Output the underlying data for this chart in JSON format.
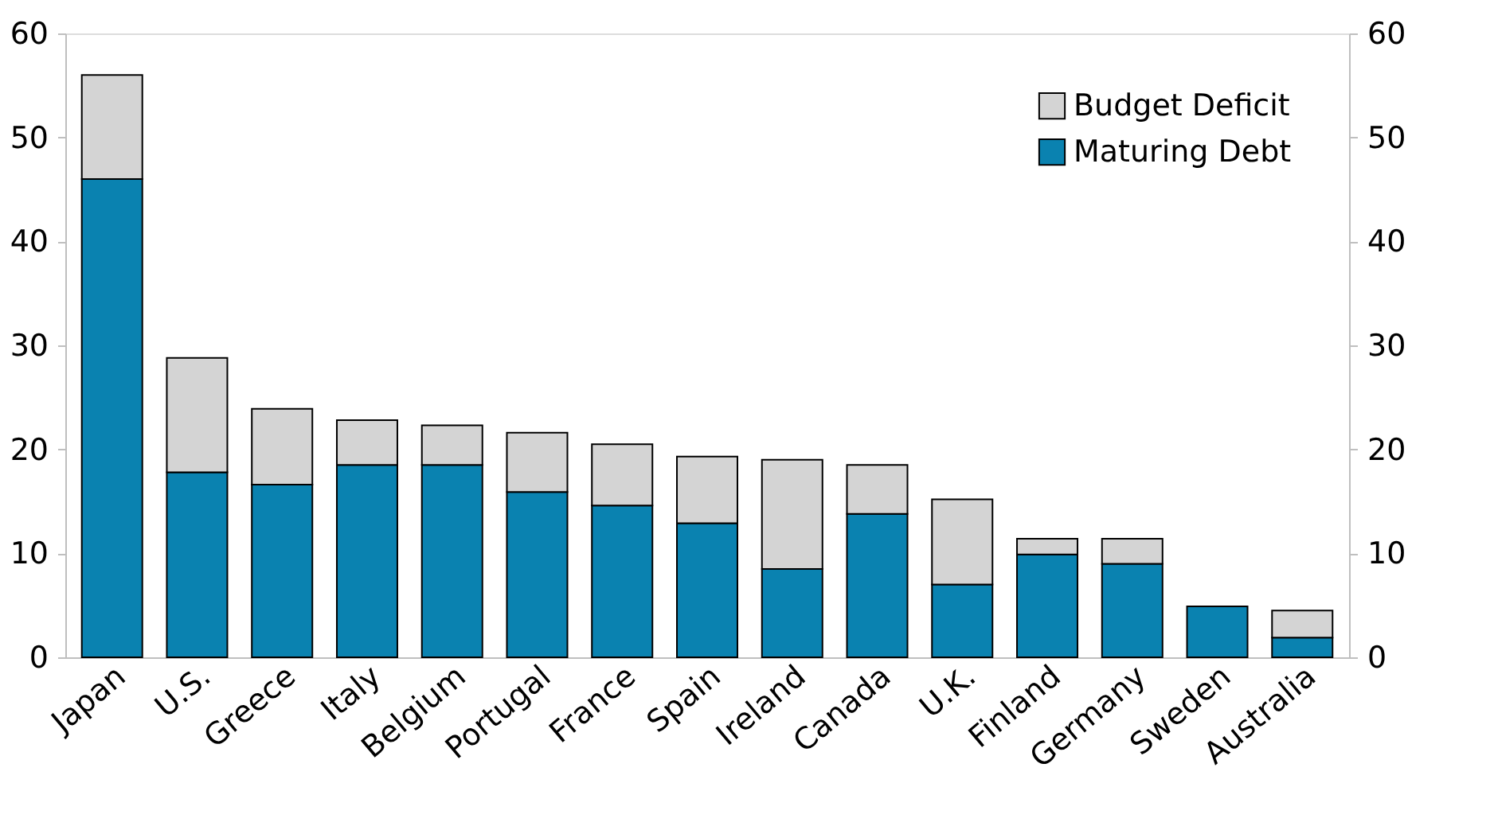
{
  "chart_data": {
    "type": "bar",
    "stacked": true,
    "categories": [
      "Japan",
      "U.S.",
      "Greece",
      "Italy",
      "Belgium",
      "Portugal",
      "France",
      "Spain",
      "Ireland",
      "Canada",
      "U.K.",
      "Finland",
      "Germany",
      "Sweden",
      "Australia"
    ],
    "series": [
      {
        "name": "Maturing Debt",
        "color": "#0a82b0",
        "values": [
          46,
          17.8,
          16.6,
          18.5,
          18.5,
          15.9,
          14.6,
          12.9,
          8.5,
          13.8,
          7.0,
          9.9,
          9.0,
          4.9,
          1.9
        ]
      },
      {
        "name": "Budget Deficit",
        "color": "#d4d4d4",
        "values": [
          10,
          11.0,
          7.3,
          4.3,
          3.8,
          5.7,
          5.9,
          6.4,
          10.5,
          4.7,
          8.2,
          1.5,
          2.4,
          null,
          2.6
        ]
      }
    ],
    "ylim": [
      0,
      60
    ],
    "yticks": [
      0,
      10,
      20,
      30,
      40,
      50,
      60
    ],
    "y2lim": [
      0,
      60
    ],
    "y2ticks": [
      0,
      10,
      20,
      30,
      40,
      50,
      60
    ],
    "grid": false,
    "legend": "top right"
  }
}
